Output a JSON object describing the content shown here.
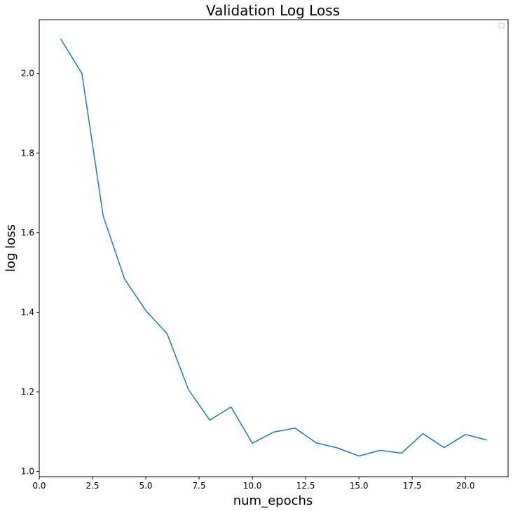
{
  "chart_data": {
    "type": "line",
    "title": "Validation Log Loss",
    "xlabel": "num_epochs",
    "ylabel": "log loss",
    "xlim": [
      0.0,
      22.0
    ],
    "ylim": [
      0.987,
      2.135
    ],
    "x_ticks": [
      0.0,
      2.5,
      5.0,
      7.5,
      10.0,
      12.5,
      15.0,
      17.5,
      20.0
    ],
    "x_tick_labels": [
      "0.0",
      "2.5",
      "5.0",
      "7.5",
      "10.0",
      "12.5",
      "15.0",
      "17.5",
      "20.0"
    ],
    "y_ticks": [
      1.0,
      1.2,
      1.4,
      1.6,
      1.8,
      2.0
    ],
    "y_tick_labels": [
      "1.0",
      "1.2",
      "1.4",
      "1.6",
      "1.8",
      "2.0"
    ],
    "grid": false,
    "legend": {
      "placement": "top-right",
      "entries": []
    },
    "series": [
      {
        "color": "#1f77b4",
        "x": [
          1,
          2,
          3,
          4,
          5,
          6,
          7,
          8,
          9,
          10,
          11,
          12,
          13,
          14,
          15,
          16,
          17,
          18,
          19,
          20,
          21
        ],
        "y": [
          2.087,
          2.0,
          1.642,
          1.484,
          1.404,
          1.346,
          1.206,
          1.129,
          1.162,
          1.071,
          1.099,
          1.109,
          1.072,
          1.059,
          1.039,
          1.053,
          1.046,
          1.095,
          1.06,
          1.093,
          1.079
        ]
      }
    ]
  }
}
